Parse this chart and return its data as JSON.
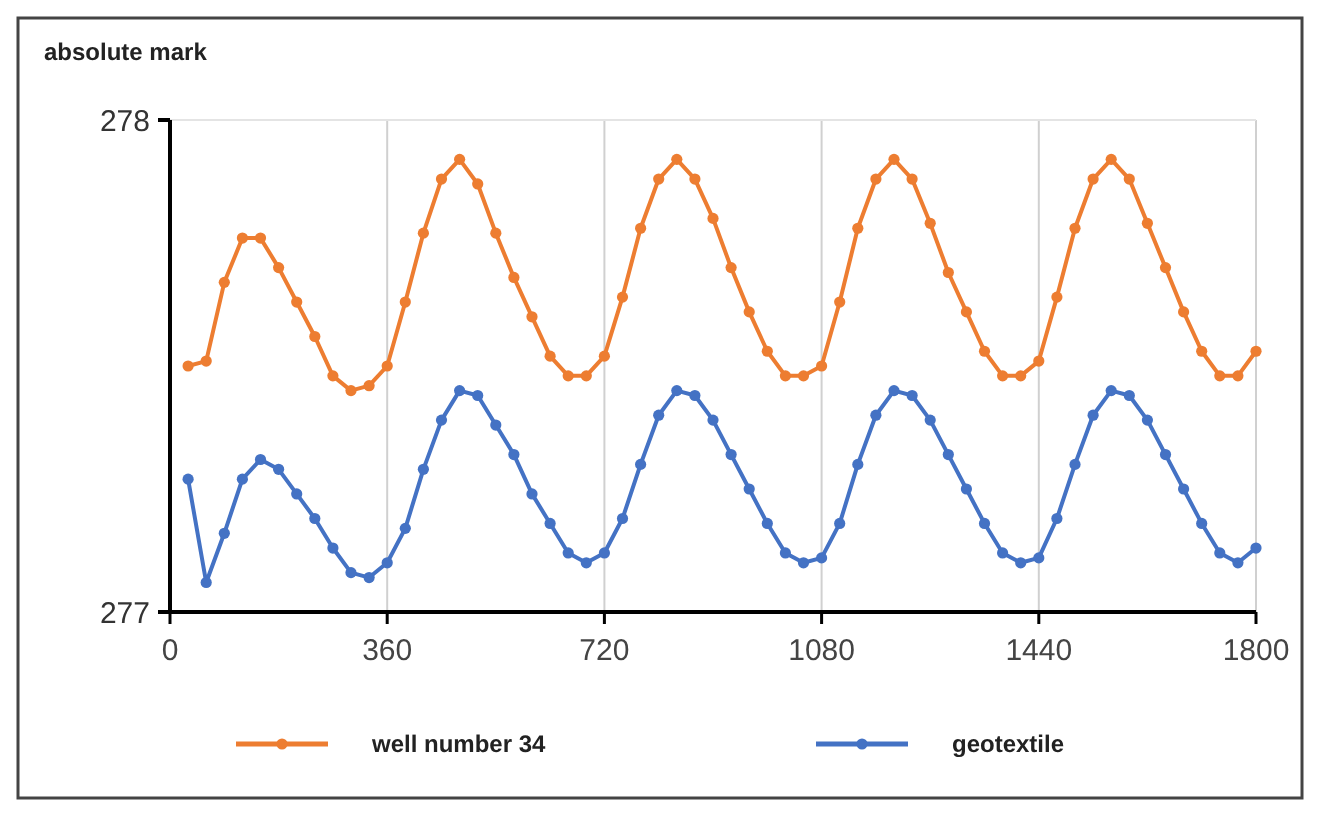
{
  "chart_data": {
    "type": "line",
    "ylabel": "absolute mark",
    "x": [
      30,
      60,
      90,
      120,
      150,
      180,
      210,
      240,
      270,
      300,
      330,
      360,
      390,
      420,
      450,
      480,
      510,
      540,
      570,
      600,
      630,
      660,
      690,
      720,
      750,
      780,
      810,
      840,
      870,
      900,
      930,
      960,
      990,
      1020,
      1050,
      1080,
      1110,
      1140,
      1170,
      1200,
      1230,
      1260,
      1290,
      1320,
      1350,
      1380,
      1410,
      1440,
      1470,
      1500,
      1530,
      1560,
      1590,
      1620,
      1650,
      1680,
      1710,
      1740,
      1770,
      1800
    ],
    "series": [
      {
        "name": "well number 34",
        "color": "#ed7d31",
        "values": [
          277.5,
          277.51,
          277.67,
          277.76,
          277.76,
          277.7,
          277.63,
          277.56,
          277.48,
          277.45,
          277.46,
          277.5,
          277.63,
          277.77,
          277.88,
          277.92,
          277.87,
          277.77,
          277.68,
          277.6,
          277.52,
          277.48,
          277.48,
          277.52,
          277.64,
          277.78,
          277.88,
          277.92,
          277.88,
          277.8,
          277.7,
          277.61,
          277.53,
          277.48,
          277.48,
          277.5,
          277.63,
          277.78,
          277.88,
          277.92,
          277.88,
          277.79,
          277.69,
          277.61,
          277.53,
          277.48,
          277.48,
          277.51,
          277.64,
          277.78,
          277.88,
          277.92,
          277.88,
          277.79,
          277.7,
          277.61,
          277.53,
          277.48,
          277.48,
          277.53
        ]
      },
      {
        "name": "geotextile",
        "color": "#4472c4",
        "values": [
          277.27,
          277.06,
          277.16,
          277.27,
          277.31,
          277.29,
          277.24,
          277.19,
          277.13,
          277.08,
          277.07,
          277.1,
          277.17,
          277.29,
          277.39,
          277.45,
          277.44,
          277.38,
          277.32,
          277.24,
          277.18,
          277.12,
          277.1,
          277.12,
          277.19,
          277.3,
          277.4,
          277.45,
          277.44,
          277.39,
          277.32,
          277.25,
          277.18,
          277.12,
          277.1,
          277.11,
          277.18,
          277.3,
          277.4,
          277.45,
          277.44,
          277.39,
          277.32,
          277.25,
          277.18,
          277.12,
          277.1,
          277.11,
          277.19,
          277.3,
          277.4,
          277.45,
          277.44,
          277.39,
          277.32,
          277.25,
          277.18,
          277.12,
          277.1,
          277.13
        ]
      }
    ],
    "xlim": [
      0,
      1800
    ],
    "xticks": [
      0,
      360,
      720,
      1080,
      1440,
      1800
    ],
    "ylim": [
      277,
      278
    ],
    "yticks": [
      277,
      278
    ],
    "grid": "x",
    "legend": "bottom",
    "marker": "circle",
    "line_style": "solid"
  }
}
